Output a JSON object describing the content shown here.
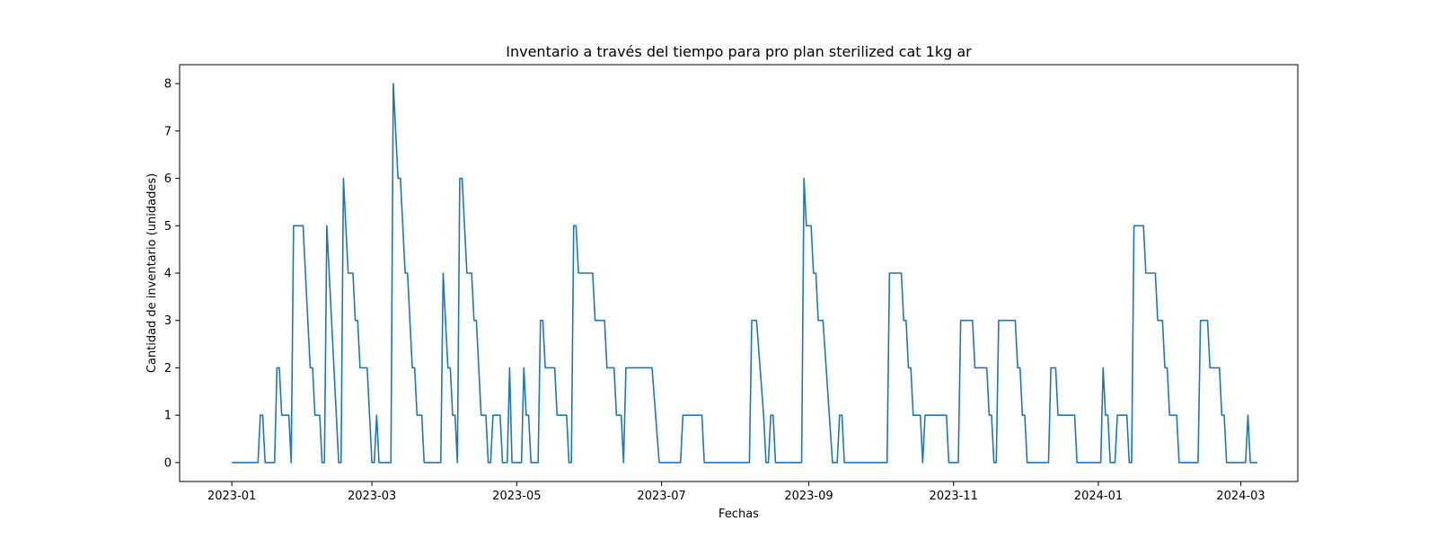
{
  "chart_data": {
    "type": "line",
    "title": "Inventario a través del tiempo para pro plan sterilized cat 1kg ar",
    "xlabel": "Fechas",
    "ylabel": "Cantidad de inventario (unidades)",
    "x_range": [
      "2022-12-10",
      "2024-03-25"
    ],
    "ylim": [
      -0.4,
      8.4
    ],
    "y_ticks": [
      0,
      1,
      2,
      3,
      4,
      5,
      6,
      7,
      8
    ],
    "x_ticks": [
      {
        "date": "2023-01-01",
        "label": "2023-01"
      },
      {
        "date": "2023-03-01",
        "label": "2023-03"
      },
      {
        "date": "2023-05-01",
        "label": "2023-05"
      },
      {
        "date": "2023-07-01",
        "label": "2023-07"
      },
      {
        "date": "2023-09-01",
        "label": "2023-09"
      },
      {
        "date": "2023-11-01",
        "label": "2023-11"
      },
      {
        "date": "2024-01-01",
        "label": "2024-01"
      },
      {
        "date": "2024-03-01",
        "label": "2024-03"
      }
    ],
    "grid": false,
    "line_color": "#1f77b4",
    "series": [
      {
        "points": [
          [
            "2023-01-01",
            0
          ],
          [
            "2023-01-12",
            0
          ],
          [
            "2023-01-13",
            1
          ],
          [
            "2023-01-14",
            1
          ],
          [
            "2023-01-15",
            0
          ],
          [
            "2023-01-19",
            0
          ],
          [
            "2023-01-20",
            2
          ],
          [
            "2023-01-21",
            2
          ],
          [
            "2023-01-22",
            1
          ],
          [
            "2023-01-25",
            1
          ],
          [
            "2023-01-26",
            0
          ],
          [
            "2023-01-27",
            5
          ],
          [
            "2023-01-31",
            5
          ],
          [
            "2023-02-03",
            2
          ],
          [
            "2023-02-04",
            2
          ],
          [
            "2023-02-05",
            1
          ],
          [
            "2023-02-07",
            1
          ],
          [
            "2023-02-08",
            0
          ],
          [
            "2023-02-09",
            0
          ],
          [
            "2023-02-10",
            5
          ],
          [
            "2023-02-15",
            0
          ],
          [
            "2023-02-16",
            0
          ],
          [
            "2023-02-17",
            6
          ],
          [
            "2023-02-19",
            4
          ],
          [
            "2023-02-21",
            4
          ],
          [
            "2023-02-22",
            3
          ],
          [
            "2023-02-23",
            3
          ],
          [
            "2023-02-24",
            2
          ],
          [
            "2023-02-27",
            2
          ],
          [
            "2023-03-01",
            0
          ],
          [
            "2023-03-02",
            0
          ],
          [
            "2023-03-03",
            1
          ],
          [
            "2023-03-04",
            0
          ],
          [
            "2023-03-09",
            0
          ],
          [
            "2023-03-10",
            8
          ],
          [
            "2023-03-12",
            6
          ],
          [
            "2023-03-13",
            6
          ],
          [
            "2023-03-15",
            4
          ],
          [
            "2023-03-16",
            4
          ],
          [
            "2023-03-18",
            2
          ],
          [
            "2023-03-19",
            2
          ],
          [
            "2023-03-20",
            1
          ],
          [
            "2023-03-22",
            1
          ],
          [
            "2023-03-23",
            0
          ],
          [
            "2023-03-30",
            0
          ],
          [
            "2023-03-31",
            4
          ],
          [
            "2023-04-02",
            2
          ],
          [
            "2023-04-03",
            2
          ],
          [
            "2023-04-04",
            1
          ],
          [
            "2023-04-05",
            1
          ],
          [
            "2023-04-06",
            0
          ],
          [
            "2023-04-07",
            6
          ],
          [
            "2023-04-08",
            6
          ],
          [
            "2023-04-10",
            4
          ],
          [
            "2023-04-12",
            4
          ],
          [
            "2023-04-13",
            3
          ],
          [
            "2023-04-14",
            3
          ],
          [
            "2023-04-16",
            1
          ],
          [
            "2023-04-18",
            1
          ],
          [
            "2023-04-19",
            0
          ],
          [
            "2023-04-20",
            0
          ],
          [
            "2023-04-21",
            1
          ],
          [
            "2023-04-24",
            1
          ],
          [
            "2023-04-25",
            0
          ],
          [
            "2023-04-27",
            0
          ],
          [
            "2023-04-28",
            2
          ],
          [
            "2023-04-29",
            0
          ],
          [
            "2023-05-03",
            0
          ],
          [
            "2023-05-04",
            2
          ],
          [
            "2023-05-05",
            1
          ],
          [
            "2023-05-06",
            1
          ],
          [
            "2023-05-07",
            0
          ],
          [
            "2023-05-10",
            0
          ],
          [
            "2023-05-11",
            3
          ],
          [
            "2023-05-12",
            3
          ],
          [
            "2023-05-13",
            2
          ],
          [
            "2023-05-17",
            2
          ],
          [
            "2023-05-18",
            1
          ],
          [
            "2023-05-22",
            1
          ],
          [
            "2023-05-23",
            0
          ],
          [
            "2023-05-24",
            0
          ],
          [
            "2023-05-25",
            5
          ],
          [
            "2023-05-26",
            5
          ],
          [
            "2023-05-27",
            4
          ],
          [
            "2023-06-02",
            4
          ],
          [
            "2023-06-03",
            3
          ],
          [
            "2023-06-07",
            3
          ],
          [
            "2023-06-08",
            2
          ],
          [
            "2023-06-11",
            2
          ],
          [
            "2023-06-12",
            1
          ],
          [
            "2023-06-14",
            1
          ],
          [
            "2023-06-15",
            0
          ],
          [
            "2023-06-16",
            2
          ],
          [
            "2023-06-27",
            2
          ],
          [
            "2023-06-30",
            0
          ],
          [
            "2023-07-09",
            0
          ],
          [
            "2023-07-10",
            1
          ],
          [
            "2023-07-18",
            1
          ],
          [
            "2023-07-19",
            0
          ],
          [
            "2023-08-07",
            0
          ],
          [
            "2023-08-08",
            3
          ],
          [
            "2023-08-10",
            3
          ],
          [
            "2023-08-13",
            1
          ],
          [
            "2023-08-14",
            0
          ],
          [
            "2023-08-15",
            0
          ],
          [
            "2023-08-16",
            1
          ],
          [
            "2023-08-17",
            1
          ],
          [
            "2023-08-18",
            0
          ],
          [
            "2023-08-29",
            0
          ],
          [
            "2023-08-30",
            6
          ],
          [
            "2023-08-31",
            5
          ],
          [
            "2023-09-02",
            5
          ],
          [
            "2023-09-03",
            4
          ],
          [
            "2023-09-04",
            4
          ],
          [
            "2023-09-05",
            3
          ],
          [
            "2023-09-07",
            3
          ],
          [
            "2023-09-11",
            0
          ],
          [
            "2023-09-13",
            0
          ],
          [
            "2023-09-14",
            1
          ],
          [
            "2023-09-15",
            1
          ],
          [
            "2023-09-16",
            0
          ],
          [
            "2023-10-04",
            0
          ],
          [
            "2023-10-05",
            4
          ],
          [
            "2023-10-10",
            4
          ],
          [
            "2023-10-11",
            3
          ],
          [
            "2023-10-12",
            3
          ],
          [
            "2023-10-13",
            2
          ],
          [
            "2023-10-14",
            2
          ],
          [
            "2023-10-15",
            1
          ],
          [
            "2023-10-18",
            1
          ],
          [
            "2023-10-19",
            0
          ],
          [
            "2023-10-20",
            1
          ],
          [
            "2023-10-29",
            1
          ],
          [
            "2023-10-30",
            0
          ],
          [
            "2023-11-03",
            0
          ],
          [
            "2023-11-04",
            3
          ],
          [
            "2023-11-09",
            3
          ],
          [
            "2023-11-10",
            2
          ],
          [
            "2023-11-15",
            2
          ],
          [
            "2023-11-16",
            1
          ],
          [
            "2023-11-17",
            1
          ],
          [
            "2023-11-18",
            0
          ],
          [
            "2023-11-19",
            0
          ],
          [
            "2023-11-20",
            3
          ],
          [
            "2023-11-27",
            3
          ],
          [
            "2023-11-28",
            2
          ],
          [
            "2023-11-29",
            2
          ],
          [
            "2023-11-30",
            1
          ],
          [
            "2023-12-01",
            1
          ],
          [
            "2023-12-02",
            0
          ],
          [
            "2023-12-11",
            0
          ],
          [
            "2023-12-12",
            2
          ],
          [
            "2023-12-14",
            2
          ],
          [
            "2023-12-15",
            1
          ],
          [
            "2023-12-22",
            1
          ],
          [
            "2023-12-23",
            0
          ],
          [
            "2024-01-02",
            0
          ],
          [
            "2024-01-03",
            2
          ],
          [
            "2024-01-04",
            1
          ],
          [
            "2024-01-05",
            1
          ],
          [
            "2024-01-06",
            0
          ],
          [
            "2024-01-08",
            0
          ],
          [
            "2024-01-09",
            1
          ],
          [
            "2024-01-13",
            1
          ],
          [
            "2024-01-14",
            0
          ],
          [
            "2024-01-15",
            0
          ],
          [
            "2024-01-16",
            5
          ],
          [
            "2024-01-20",
            5
          ],
          [
            "2024-01-21",
            4
          ],
          [
            "2024-01-25",
            4
          ],
          [
            "2024-01-26",
            3
          ],
          [
            "2024-01-28",
            3
          ],
          [
            "2024-01-29",
            2
          ],
          [
            "2024-01-30",
            2
          ],
          [
            "2024-01-31",
            1
          ],
          [
            "2024-02-03",
            1
          ],
          [
            "2024-02-04",
            0
          ],
          [
            "2024-02-12",
            0
          ],
          [
            "2024-02-13",
            3
          ],
          [
            "2024-02-16",
            3
          ],
          [
            "2024-02-17",
            2
          ],
          [
            "2024-02-21",
            2
          ],
          [
            "2024-02-22",
            1
          ],
          [
            "2024-02-23",
            1
          ],
          [
            "2024-02-24",
            0
          ],
          [
            "2024-03-03",
            0
          ],
          [
            "2024-03-04",
            1
          ],
          [
            "2024-03-05",
            0
          ],
          [
            "2024-03-08",
            0
          ]
        ]
      }
    ]
  }
}
